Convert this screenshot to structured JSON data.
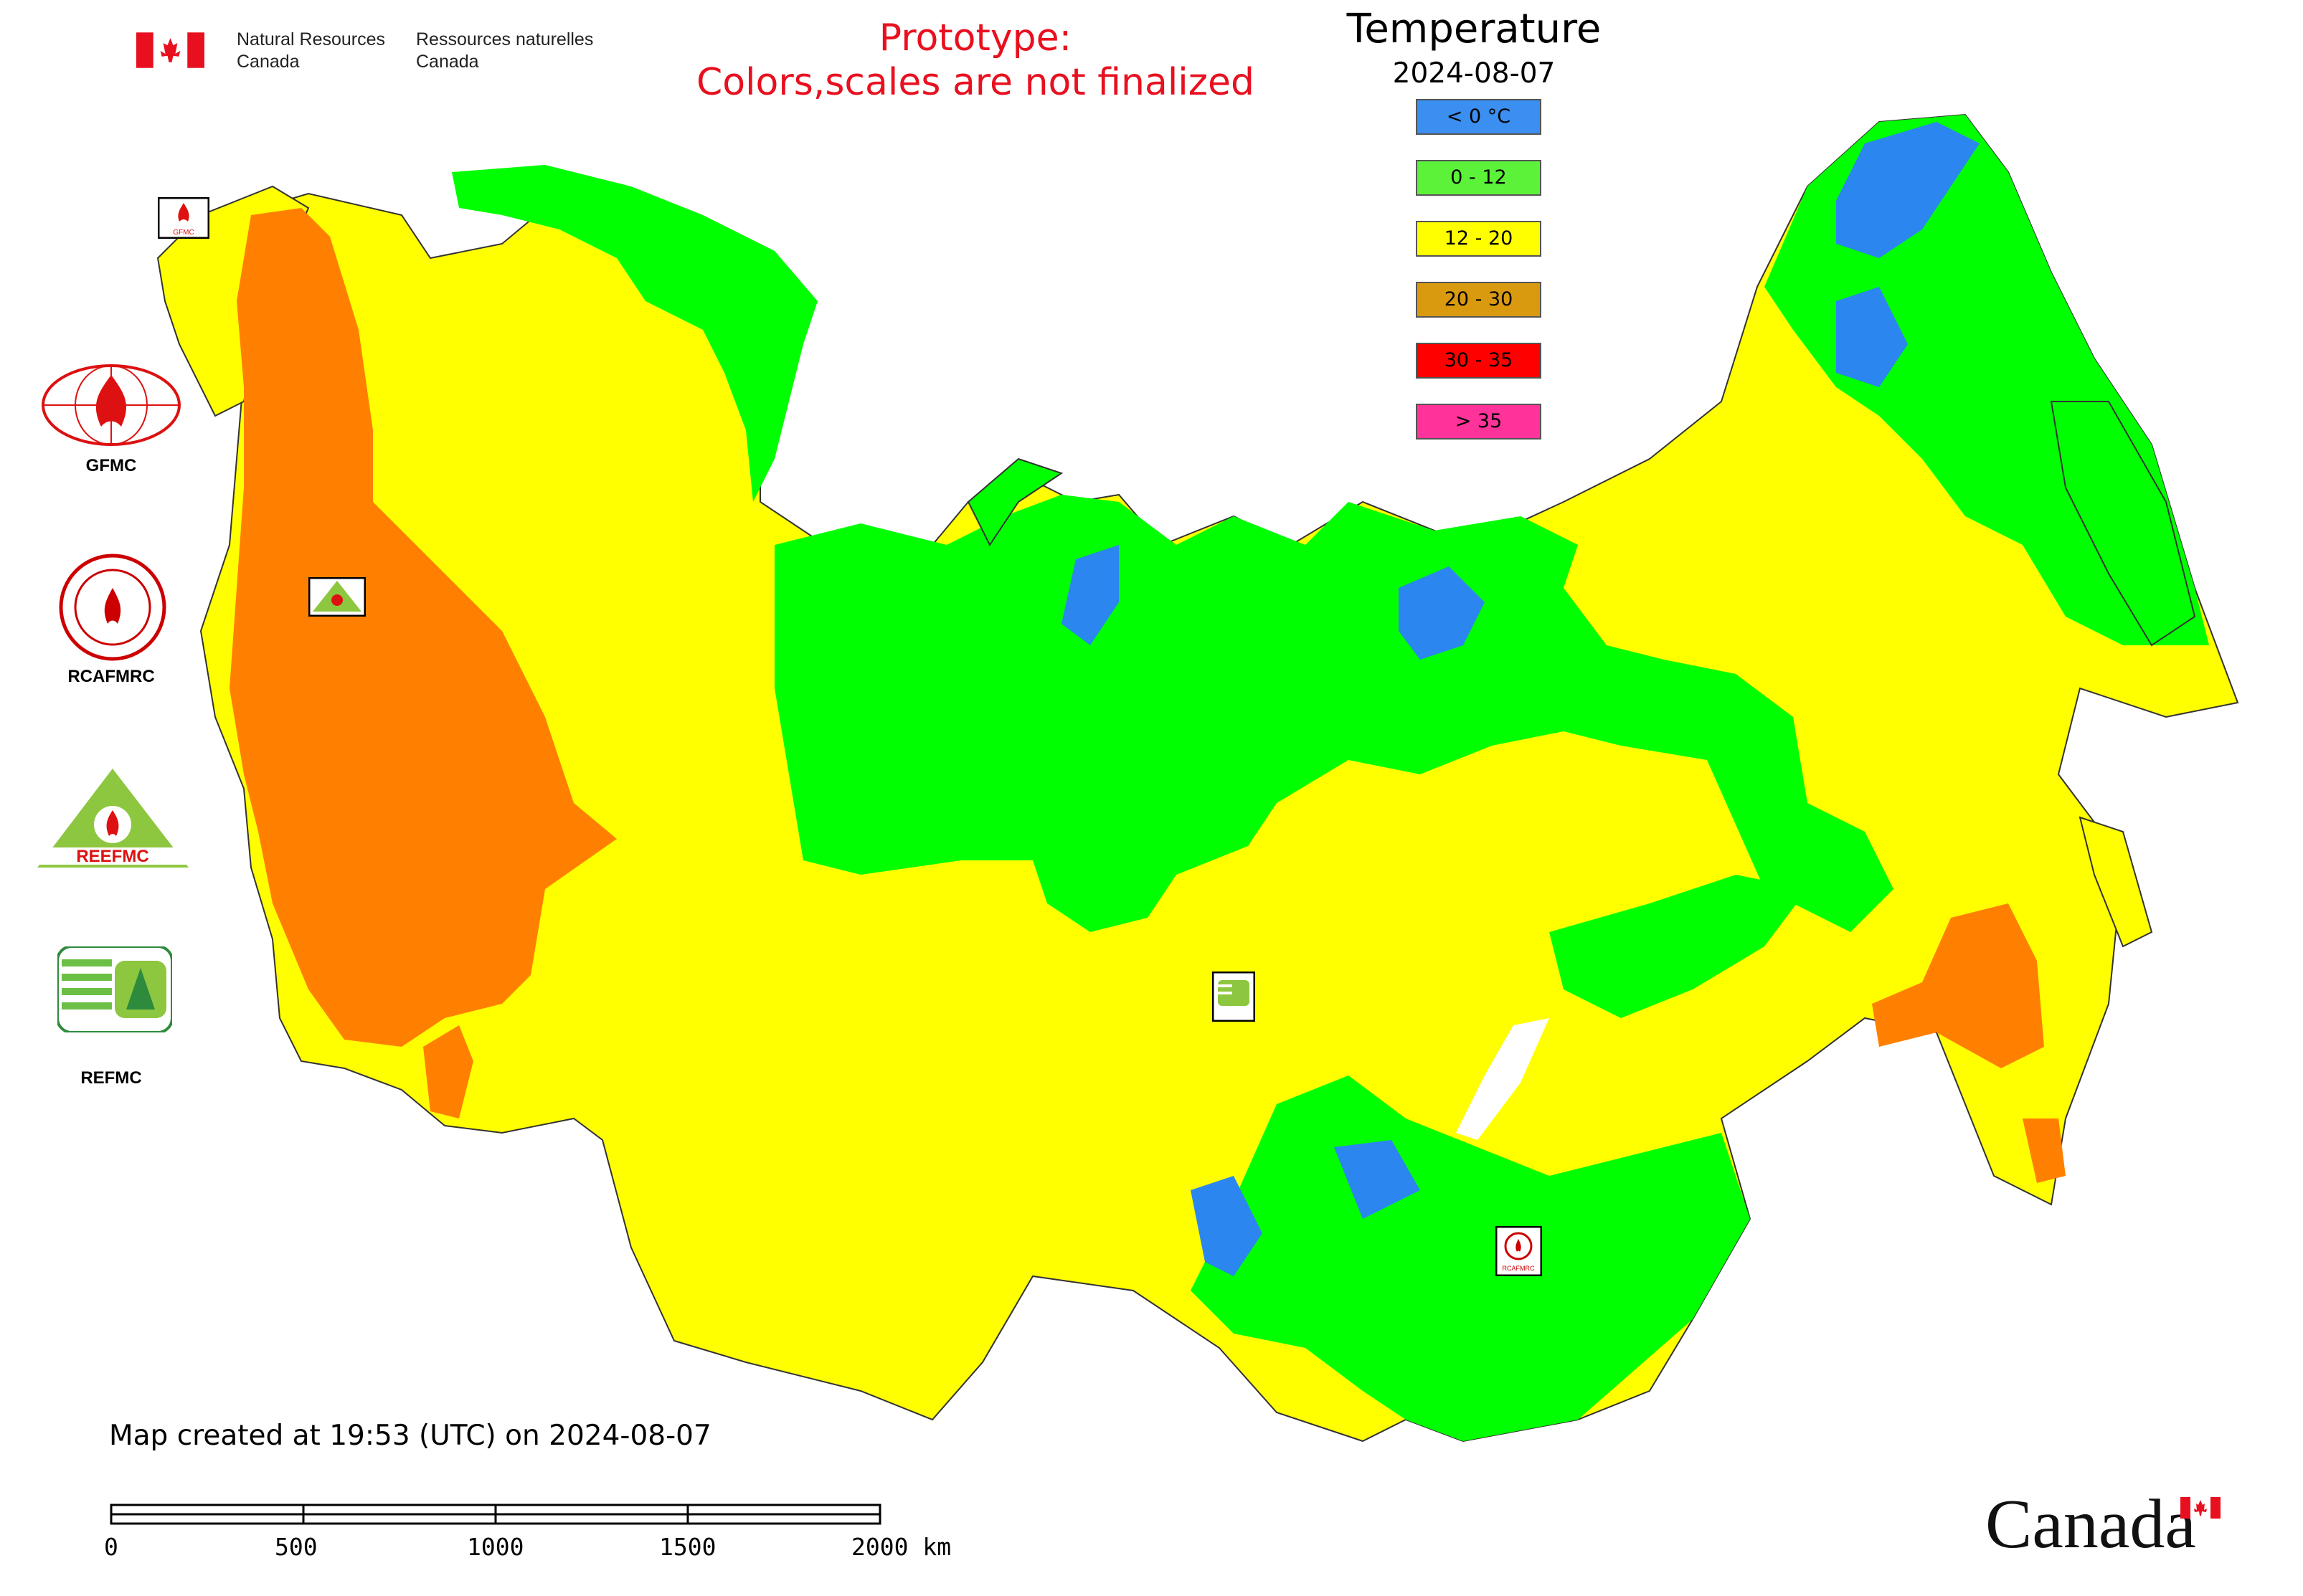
{
  "header": {
    "agency_en": "Natural Resources\nCanada",
    "agency_fr": "Ressources naturelles\nCanada",
    "prototype_note": "Prototype:\nColors,scales are not finalized"
  },
  "legend": {
    "title": "Temperature",
    "date": "2024-08-07",
    "items": [
      {
        "label": "< 0 °C",
        "color": "#3a8ff0"
      },
      {
        "label": "0 - 12",
        "color": "#5cf23a"
      },
      {
        "label": "12 - 20",
        "color": "#ffff00"
      },
      {
        "label": "20 - 30",
        "color": "#d99a10"
      },
      {
        "label": "30 - 35",
        "color": "#ff0000"
      },
      {
        "label": "> 35",
        "color": "#ff3399"
      }
    ]
  },
  "logos": {
    "gfmc": "GFMC",
    "rcafmrc": "RCAFMRC",
    "reefmc_text": "REEFMC",
    "refmc": "REFMC",
    "map_gfmc": "GFMC",
    "map_rcafmrc": "RCAFMRC"
  },
  "map_colors": {
    "below_zero": "#2b86f0",
    "cool": "#00ff00",
    "mild": "#ffff00",
    "warm": "#ff8000"
  },
  "footer": {
    "created": "Map created at 19:53 (UTC) on 2024-08-07",
    "scale_labels": [
      "0",
      "500",
      "1000",
      "1500",
      "2000 km"
    ],
    "wordmark": "Canada"
  }
}
